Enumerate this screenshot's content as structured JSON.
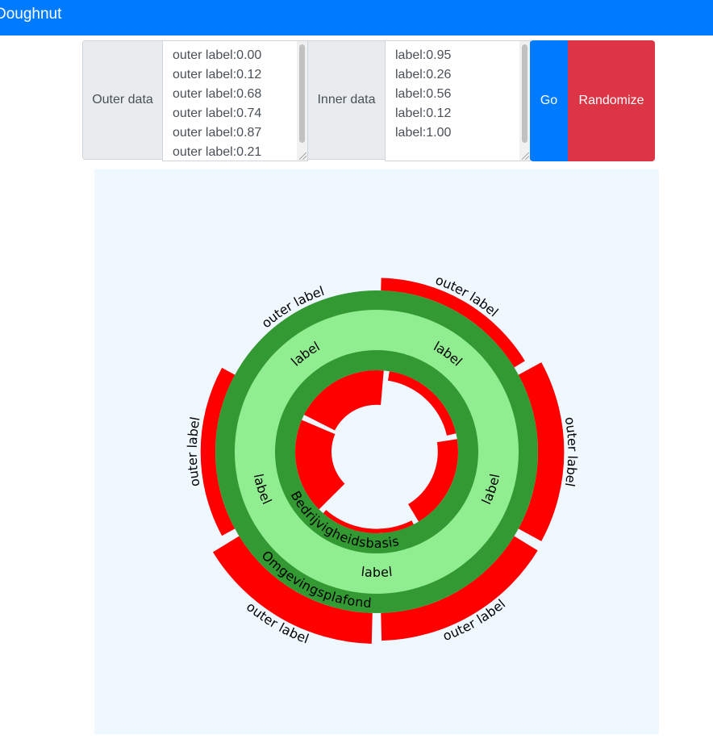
{
  "navbar": {
    "title": "Doughnut",
    "color": "#007bff"
  },
  "form": {
    "outer_label": "Outer data",
    "outer_lines": [
      "outer label:0.00",
      "outer label:0.12",
      "outer label:0.68",
      "outer label:0.74",
      "outer label:0.87",
      "outer label:0.21"
    ],
    "inner_label": "Inner data",
    "inner_lines": [
      "label:0.95",
      "label:0.26",
      "label:0.56",
      "label:0.12",
      "label:1.00"
    ],
    "go_label": "Go",
    "randomize_label": "Randomize"
  },
  "chart_data": {
    "type": "doughnut",
    "outer_ring": {
      "band_label": "Omgevingsplafond",
      "segment_labels": [
        "outer label",
        "outer label",
        "outer label",
        "outer label",
        "outer label",
        "outer label"
      ],
      "values": [
        0.0,
        0.12,
        0.68,
        0.74,
        0.87,
        0.21
      ],
      "color": "#ff0000"
    },
    "middle_band": {
      "labels": [
        "label",
        "label",
        "label",
        "label",
        "label"
      ],
      "color": "#90ee90",
      "border_color": "#339933"
    },
    "inner_ring": {
      "band_label": "Bedrijvigheidsbasis",
      "values": [
        0.95,
        0.26,
        0.56,
        0.12,
        1.0
      ],
      "color": "#ff0000"
    },
    "background": "#f0f8ff"
  }
}
